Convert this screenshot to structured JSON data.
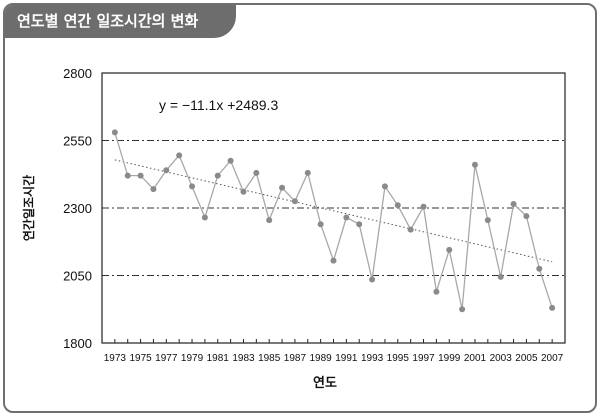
{
  "title": "연도별 연간 일조시간의 변화",
  "chart_data": {
    "type": "line",
    "xlabel": "연도",
    "ylabel": "연간일조시간",
    "ylim": [
      1800,
      2800
    ],
    "yticks": [
      1800,
      2050,
      2300,
      2550,
      2800
    ],
    "grid_lines_y": [
      2050,
      2300,
      2550
    ],
    "x_tick_labels": [
      "1973",
      "1975",
      "1977",
      "1979",
      "1981",
      "1983",
      "1985",
      "1987",
      "1989",
      "1991",
      "1993",
      "1995",
      "1997",
      "1999",
      "2001",
      "2003",
      "2005",
      "2007"
    ],
    "x": [
      1973,
      1974,
      1975,
      1976,
      1977,
      1978,
      1979,
      1980,
      1981,
      1982,
      1983,
      1984,
      1985,
      1986,
      1987,
      1988,
      1989,
      1990,
      1991,
      1992,
      1993,
      1994,
      1995,
      1996,
      1997,
      1998,
      1999,
      2000,
      2001,
      2002,
      2003,
      2004,
      2005,
      2006,
      2007
    ],
    "series": [
      {
        "values": [
          2580,
          2420,
          2420,
          2370,
          2440,
          2495,
          2380,
          2265,
          2420,
          2475,
          2360,
          2430,
          2255,
          2375,
          2325,
          2430,
          2240,
          2105,
          2265,
          2240,
          2035,
          2380,
          2310,
          2220,
          2305,
          1990,
          2145,
          1925,
          2460,
          2255,
          2045,
          2315,
          2270,
          2075,
          1930
        ]
      }
    ],
    "trendline": {
      "slope": -11.1,
      "intercept": 2489.3,
      "x0": 1972,
      "style": "dotted"
    },
    "equation": "y = −11.1x +2489.3",
    "grid": "dash-dot horizontal",
    "legend": "none"
  },
  "colors": {
    "header": "#6d6d6d",
    "line": "#a8a8a8",
    "marker": "#8a8a8a",
    "axis": "#222222"
  }
}
